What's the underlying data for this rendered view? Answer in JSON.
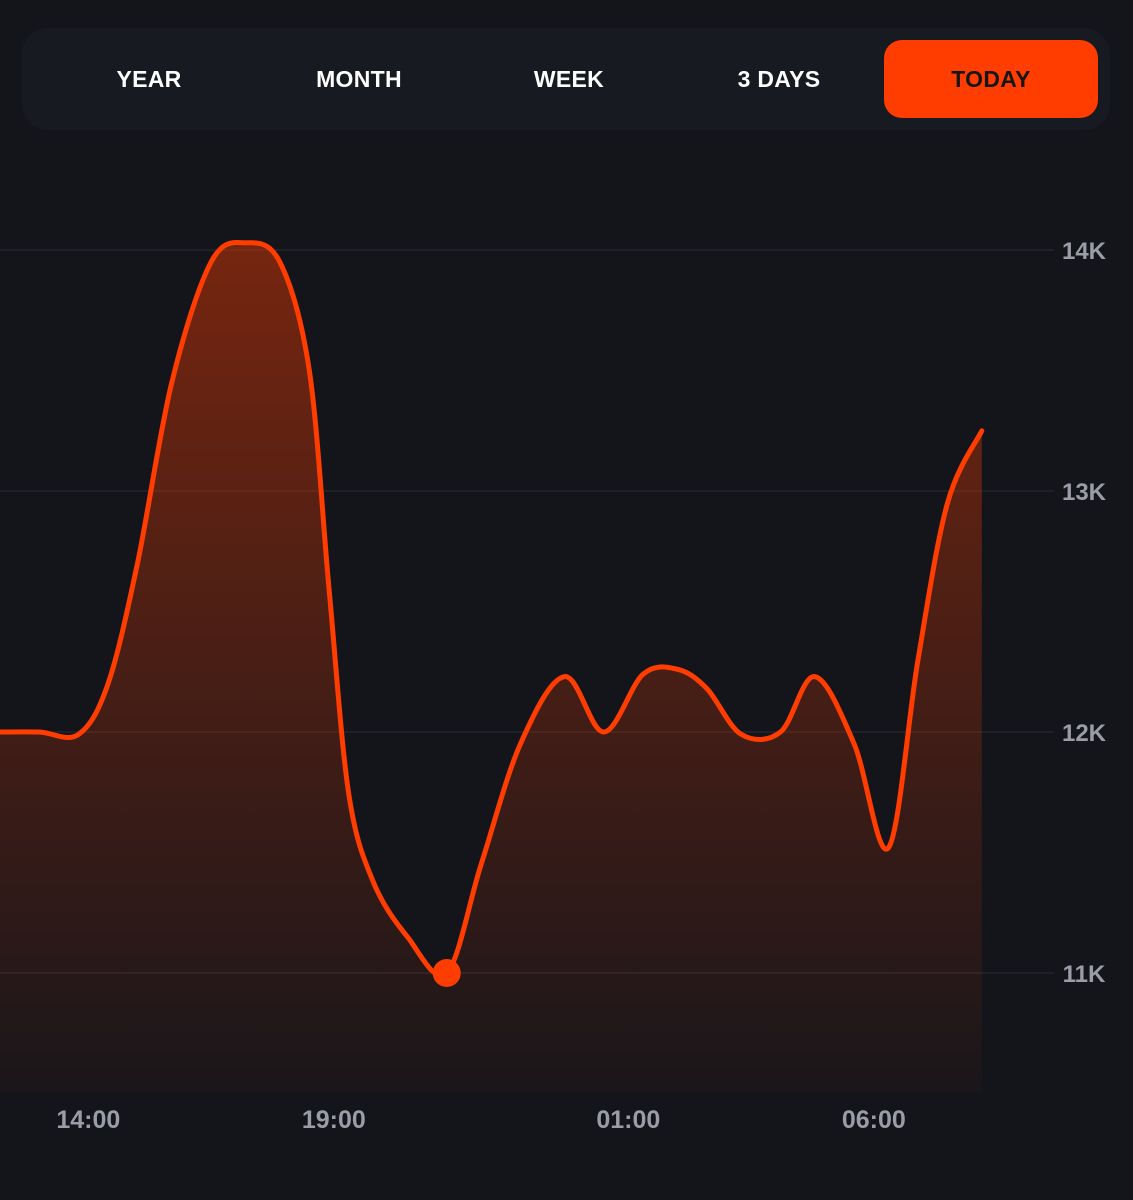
{
  "tabs": [
    {
      "label": "YEAR",
      "active": false
    },
    {
      "label": "MONTH",
      "active": false
    },
    {
      "label": "WEEK",
      "active": false
    },
    {
      "label": "3 DAYS",
      "active": false
    },
    {
      "label": "TODAY",
      "active": true
    }
  ],
  "colors": {
    "accent": "#ff3d00",
    "background": "#13151b",
    "panel": "#171a21",
    "gridline": "#2a2d36",
    "tick_label": "#9a9ca6"
  },
  "chart_data": {
    "type": "area",
    "title": "",
    "xlabel": "",
    "ylabel": "",
    "grid": true,
    "ylim": [
      10500,
      14500
    ],
    "y_ticks": [
      {
        "value": 14000,
        "label": "14K"
      },
      {
        "value": 13000,
        "label": "13K"
      },
      {
        "value": 12000,
        "label": "12K"
      },
      {
        "value": 11000,
        "label": "11K"
      }
    ],
    "x_ticks": [
      {
        "value": 14.0,
        "label": "14:00"
      },
      {
        "value": 19.0,
        "label": "19:00"
      },
      {
        "value": 25.0,
        "label": "01:00"
      },
      {
        "value": 30.0,
        "label": "06:00"
      }
    ],
    "xlim": [
      12.2,
      33.1
    ],
    "series": [
      {
        "points": [
          [
            12.2,
            12000
          ],
          [
            13.0,
            12000
          ],
          [
            13.8,
            11990
          ],
          [
            14.4,
            12200
          ],
          [
            15.0,
            12700
          ],
          [
            15.7,
            13450
          ],
          [
            16.5,
            13950
          ],
          [
            17.2,
            14030
          ],
          [
            17.9,
            13950
          ],
          [
            18.5,
            13500
          ],
          [
            18.9,
            12600
          ],
          [
            19.3,
            11750
          ],
          [
            19.8,
            11380
          ],
          [
            20.5,
            11150
          ],
          [
            21.3,
            11000
          ],
          [
            22.0,
            11450
          ],
          [
            22.8,
            11950
          ],
          [
            23.7,
            12230
          ],
          [
            24.5,
            12000
          ],
          [
            25.3,
            12240
          ],
          [
            26.0,
            12260
          ],
          [
            26.6,
            12180
          ],
          [
            27.3,
            11990
          ],
          [
            28.1,
            12000
          ],
          [
            28.8,
            12230
          ],
          [
            29.6,
            11950
          ],
          [
            30.3,
            11520
          ],
          [
            30.9,
            12300
          ],
          [
            31.5,
            12950
          ],
          [
            32.2,
            13250
          ]
        ]
      }
    ],
    "highlight": {
      "x": 21.3,
      "y": 11000
    }
  }
}
